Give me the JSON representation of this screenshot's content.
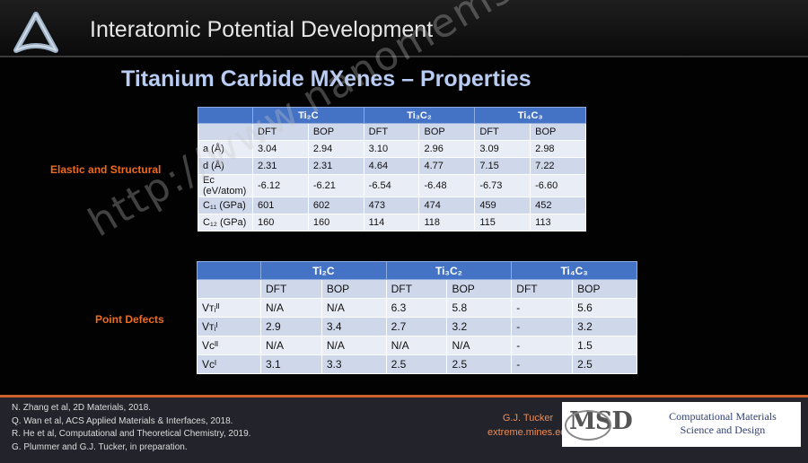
{
  "header": {
    "section_title": "Interatomic Potential Development"
  },
  "slide": {
    "title": "Titanium Carbide MXenes – Properties"
  },
  "labels": {
    "elastic": "Elastic and Structural",
    "defects": "Point Defects"
  },
  "elastic_table": {
    "columns": [
      "",
      "Ti₂C",
      "Ti₃C₂",
      "Ti₄C₃"
    ],
    "subheaders": [
      "",
      "DFT",
      "BOP",
      "DFT",
      "BOP",
      "DFT",
      "BOP"
    ],
    "rows": [
      [
        "a (Å)",
        "3.04",
        "2.94",
        "3.10",
        "2.96",
        "3.09",
        "2.98"
      ],
      [
        "d (Å)",
        "2.31",
        "2.31",
        "4.64",
        "4.77",
        "7.15",
        "7.22"
      ],
      [
        "Eᴄ (eV/atom)",
        "-6.12",
        "-6.21",
        "-6.54",
        "-6.48",
        "-6.73",
        "-6.60"
      ],
      [
        "C₁₁ (GPa)",
        "601",
        "602",
        "473",
        "474",
        "459",
        "452"
      ],
      [
        "C₁₂ (GPa)",
        "160",
        "160",
        "114",
        "118",
        "115",
        "113"
      ]
    ]
  },
  "defects_table": {
    "columns": [
      "",
      "Ti₂C",
      "Ti₃C₂",
      "Ti₄C₃"
    ],
    "subheaders": [
      "",
      "DFT",
      "BOP",
      "DFT",
      "BOP",
      "DFT",
      "BOP"
    ],
    "rows": [
      [
        "Vᴛᵢᴵᴵ",
        "N/A",
        "N/A",
        "6.3",
        "5.8",
        "-",
        "5.6"
      ],
      [
        "Vᴛᵢᴵ",
        "2.9",
        "3.4",
        "2.7",
        "3.2",
        "-",
        "3.2"
      ],
      [
        "Vᴄᴵᴵ",
        "N/A",
        "N/A",
        "N/A",
        "N/A",
        "-",
        "1.5"
      ],
      [
        "Vᴄᴵ",
        "3.1",
        "3.3",
        "2.5",
        "2.5",
        "-",
        "2.5"
      ]
    ]
  },
  "footer": {
    "references": [
      "N. Zhang et al, 2D Materials, 2018.",
      "Q. Wan et al, ACS Applied Materials & Interfaces, 2018.",
      "R. He et al, Computational and Theoretical Chemistry, 2019.",
      "G. Plummer and G.J. Tucker, in preparation."
    ],
    "author": "G.J. Tucker",
    "website": "extreme.mines.edu",
    "logo_text": "MSD",
    "group_name_line1": "Computational Materials",
    "group_name_line2": "Science and Design"
  },
  "watermark": "http://www.nanomems.com",
  "colors": {
    "accent": "#f06a1e",
    "table_header": "#4472c4",
    "title": "#b9ccf3"
  }
}
